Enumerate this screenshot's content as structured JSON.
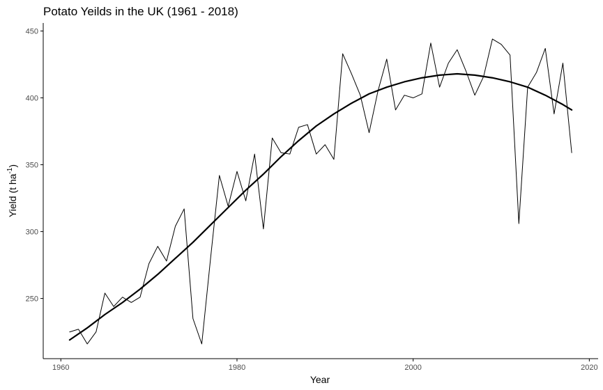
{
  "chart_data": {
    "type": "line",
    "title": "Potato Yeilds in the UK (1961 - 2018)",
    "xlabel": "Year",
    "ylabel": {
      "main": "Yield (t ha",
      "superscript": "-1",
      "close": ")"
    },
    "xlim": [
      1958,
      2021
    ],
    "ylim": [
      205,
      456
    ],
    "x_ticks": [
      1960,
      1980,
      2000,
      2020
    ],
    "y_ticks": [
      250,
      300,
      350,
      400,
      450
    ],
    "grid": false,
    "legend": "none",
    "colors": {
      "series": "#000000",
      "axis": "#000000",
      "tick_label": "#4d4d4d"
    },
    "series": [
      {
        "style": "thin",
        "x": [
          1961,
          1962,
          1963,
          1964,
          1965,
          1966,
          1967,
          1968,
          1969,
          1970,
          1971,
          1972,
          1973,
          1974,
          1975,
          1976,
          1977,
          1978,
          1979,
          1980,
          1981,
          1982,
          1983,
          1984,
          1985,
          1986,
          1987,
          1988,
          1989,
          1990,
          1991,
          1992,
          1993,
          1994,
          1995,
          1996,
          1997,
          1998,
          1999,
          2000,
          2001,
          2002,
          2003,
          2004,
          2005,
          2006,
          2007,
          2008,
          2009,
          2010,
          2011,
          2012,
          2013,
          2014,
          2015,
          2016,
          2017,
          2018
        ],
        "y": [
          225,
          227,
          216,
          225,
          254,
          244,
          251,
          247,
          251,
          276,
          289,
          278,
          304,
          317,
          235,
          216,
          280,
          342,
          319,
          345,
          323,
          358,
          302,
          370,
          359,
          358,
          378,
          380,
          358,
          365,
          354,
          433,
          418,
          402,
          374,
          405,
          429,
          391,
          402,
          400,
          403,
          441,
          408,
          426,
          436,
          420,
          402,
          416,
          444,
          440,
          432,
          306,
          408,
          419,
          437,
          388,
          426,
          359
        ]
      },
      {
        "style": "smooth",
        "x": [
          1961,
          1963,
          1965,
          1967,
          1969,
          1971,
          1973,
          1975,
          1977,
          1979,
          1981,
          1983,
          1985,
          1987,
          1989,
          1991,
          1993,
          1995,
          1997,
          1999,
          2001,
          2003,
          2005,
          2007,
          2009,
          2011,
          2013,
          2015,
          2017,
          2018
        ],
        "y": [
          219,
          228,
          238,
          247,
          257,
          268,
          280,
          292,
          305,
          318,
          331,
          343,
          356,
          368,
          379,
          388,
          396,
          403,
          408,
          412,
          415,
          417,
          418,
          417,
          415,
          412,
          408,
          402,
          395,
          391
        ]
      }
    ]
  }
}
